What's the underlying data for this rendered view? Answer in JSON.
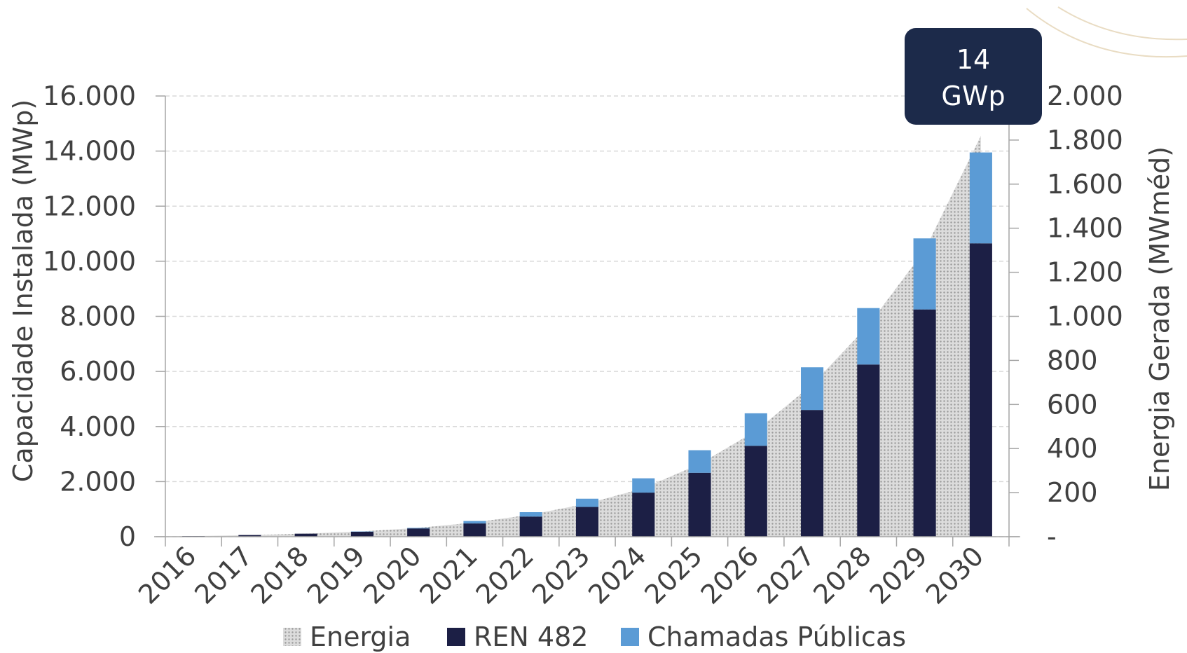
{
  "chart_data": {
    "type": "bar",
    "stacked": true,
    "categories": [
      "2016",
      "2017",
      "2018",
      "2019",
      "2020",
      "2021",
      "2022",
      "2023",
      "2024",
      "2025",
      "2026",
      "2027",
      "2028",
      "2029",
      "2030"
    ],
    "series": [
      {
        "name": "REN 482",
        "kind": "bar",
        "axis": "left",
        "color": "#1c1f45",
        "values": [
          25,
          60,
          110,
          180,
          300,
          480,
          730,
          1080,
          1600,
          2320,
          3300,
          4600,
          6250,
          8250,
          10650
        ]
      },
      {
        "name": "Chamadas Públicas",
        "kind": "bar",
        "axis": "left",
        "color": "#5b9bd5",
        "values": [
          0,
          0,
          0,
          10,
          20,
          90,
          160,
          300,
          520,
          820,
          1180,
          1550,
          2050,
          2580,
          3300
        ]
      },
      {
        "name": "Energia",
        "kind": "area",
        "axis": "right",
        "color": "#c8c8c8",
        "values": [
          3,
          7,
          14,
          24,
          40,
          65,
          100,
          150,
          220,
          330,
          480,
          690,
          960,
          1300,
          1820
        ]
      }
    ],
    "ylabel": "Capacidade Instalada (MWp)",
    "y2label": "Energia Gerada (MWméd)",
    "ylim": [
      0,
      16000
    ],
    "y2lim": [
      0,
      2000
    ],
    "yticks": [
      "0",
      "2.000",
      "4.000",
      "6.000",
      "8.000",
      "10.000",
      "12.000",
      "14.000",
      "16.000"
    ],
    "y2ticks": [
      "-",
      "200",
      "400",
      "600",
      "800",
      "1.000",
      "1.200",
      "1.400",
      "1.600",
      "1.800",
      "2.000"
    ],
    "grid": true,
    "legend_position": "bottom",
    "legend": [
      "Energia",
      "REN 482",
      "Chamadas Públicas"
    ],
    "annotation": {
      "line1": "14",
      "line2": "GWp"
    }
  }
}
